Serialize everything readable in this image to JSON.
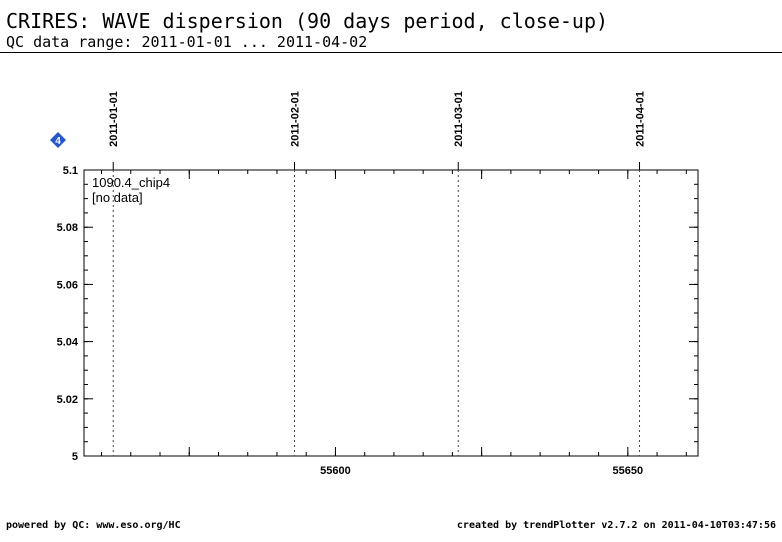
{
  "header": {
    "title": "CRIRES: WAVE dispersion (90 days period, close-up)",
    "subtitle": "QC data range: 2011-01-01 ... 2011-04-02"
  },
  "footer": {
    "left": "powered by QC: www.eso.org/HC",
    "right": "created by trendPlotter v2.7.2 on 2011-04-10T03:47:56"
  },
  "marker": {
    "label": "4",
    "color": "#2255dd"
  },
  "chart_data": {
    "type": "scatter",
    "series": [],
    "annotation_name": "1090.4_chip4",
    "annotation_note": "[no data]",
    "xlim": [
      55557,
      55662
    ],
    "ylim": [
      5,
      5.1
    ],
    "x_ticks": [
      {
        "value": 55600,
        "label": "55600"
      },
      {
        "value": 55650,
        "label": "55650"
      }
    ],
    "y_ticks": [
      {
        "value": 5.1,
        "label": "5.1"
      },
      {
        "value": 5.08,
        "label": "5.08"
      },
      {
        "value": 5.06,
        "label": "5.06"
      },
      {
        "value": 5.04,
        "label": "5.04"
      },
      {
        "value": 5.02,
        "label": "5.02"
      },
      {
        "value": 5.0,
        "label": "5"
      }
    ],
    "date_markers": [
      {
        "value": 55562,
        "label": "2011-01-01"
      },
      {
        "value": 55593,
        "label": "2011-02-01"
      },
      {
        "value": 55621,
        "label": "2011-03-01"
      },
      {
        "value": 55652,
        "label": "2011-04-01"
      }
    ],
    "grid": false,
    "colors": {
      "axis": "#000000",
      "date_line": "#444444"
    }
  }
}
